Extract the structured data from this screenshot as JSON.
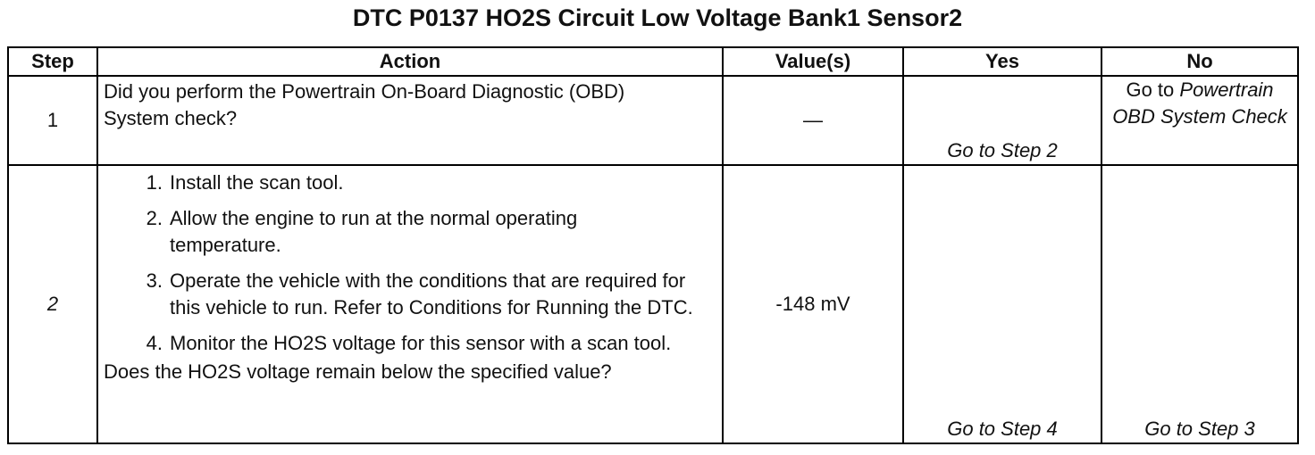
{
  "title": "DTC P0137 HO2S Circuit Low Voltage Bank1 Sensor2",
  "table": {
    "headers": [
      "Step",
      "Action",
      "Value(s)",
      "Yes",
      "No"
    ],
    "rows": [
      {
        "step": "1",
        "action": {
          "question": "Did you perform the Powertrain On-Board Diagnostic (OBD) System check?"
        },
        "value": "—",
        "yes": "Go to Step 2",
        "no": {
          "prefix": "Go to",
          "link": "Powertrain OBD System Check"
        }
      },
      {
        "step": "2",
        "action": {
          "steps": [
            {
              "number": "1.",
              "text": "Install the scan tool."
            },
            {
              "number": "2.",
              "text": "Allow the engine to run at the normal operating temperature."
            },
            {
              "number": "3.",
              "text": "Operate the vehicle with the conditions that are required for this vehicle to run. Refer to Conditions for Running the DTC."
            },
            {
              "number": "4.",
              "text": "Monitor the HO2S voltage for this sensor with a scan tool."
            }
          ],
          "question": "Does the HO2S voltage remain below the specified value?"
        },
        "value": "-148 mV",
        "yes": "Go to Step 4",
        "no": "Go to Step 3"
      }
    ]
  }
}
